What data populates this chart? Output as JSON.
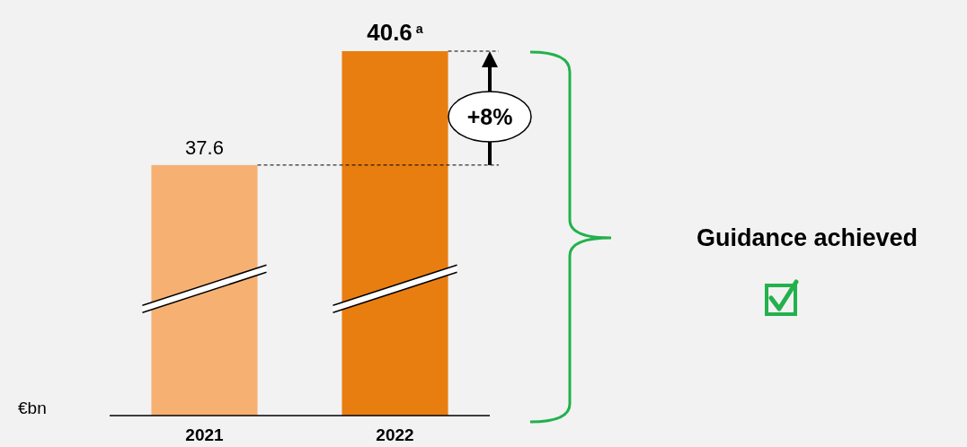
{
  "chart_data": {
    "type": "bar",
    "categories": [
      "2021",
      "2022"
    ],
    "values": [
      37.6,
      40.6
    ],
    "colors": [
      "#f6b172",
      "#e97e10"
    ],
    "value_labels": [
      "37.6",
      "40.6$^{a}$"
    ],
    "ylim": [
      31,
      40.6
    ],
    "tick_labels": "x",
    "ref_lines": [
      {
        "axis": "y",
        "value": 37.6,
        "line_style": "dashed",
        "color": "#000000"
      },
      {
        "axis": "y",
        "value": 40.6,
        "line_style": "dashed",
        "color": "#000000"
      }
    ],
    "annotations": [
      "+8%",
      "Guidance achieved",
      "€bn"
    ]
  }
}
